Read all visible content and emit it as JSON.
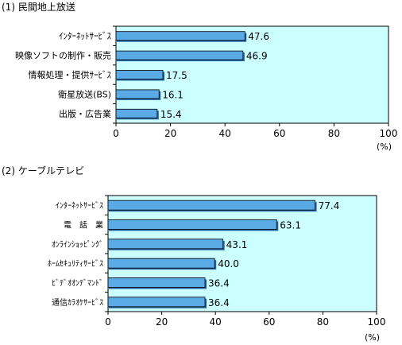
{
  "chart_data": [
    {
      "type": "bar",
      "orientation": "horizontal",
      "title": "(1)  民間地上放送",
      "categories": [
        "ｲﾝﾀｰﾈｯﾄｻｰﾋﾞｽ",
        "映像ソフトの制作・販売",
        "情報処理・提供ｻｰﾋﾞｽ",
        "衛星放送(BS)",
        "出版・広告業"
      ],
      "values": [
        47.6,
        46.9,
        17.5,
        16.1,
        15.4
      ],
      "value_labels": [
        "47.6",
        "46.9",
        "17.5",
        "16.1",
        "15.4"
      ],
      "xlim": [
        0,
        100
      ],
      "xticks": [
        "0",
        "20",
        "40",
        "60",
        "80",
        "100"
      ],
      "unit": "(%)",
      "grid": false
    },
    {
      "type": "bar",
      "orientation": "horizontal",
      "title": "(2)  ケーブルテレビ",
      "categories": [
        "ｲﾝﾀｰﾈｯﾄｻｰﾋﾞｽ",
        "電　話　業",
        "ｵﾝﾗｲﾝｼｮｯﾋﾟﾝｸﾞ",
        "ﾎｰﾑｾｷｭﾘﾃｨｻｰﾋﾞｽ",
        "ﾋﾞﾃﾞｵｵﾝﾃﾞﾏﾝﾄﾞ",
        "通信ｶﾗｵｹｻｰﾋﾞｽ"
      ],
      "values": [
        77.4,
        63.1,
        43.1,
        40.0,
        36.4,
        36.4
      ],
      "value_labels": [
        "77.4",
        "63.1",
        "43.1",
        "40.0",
        "36.4",
        "36.4"
      ],
      "xlim": [
        0,
        100
      ],
      "xticks": [
        "0",
        "20",
        "40",
        "60",
        "80",
        "100"
      ],
      "unit": "(%)",
      "grid": false
    }
  ],
  "colors": {
    "plot_bg": "#ccffff",
    "bar_fill": "#5aaae6",
    "bar_shade": "#2a6aa8",
    "axis": "#000000"
  }
}
